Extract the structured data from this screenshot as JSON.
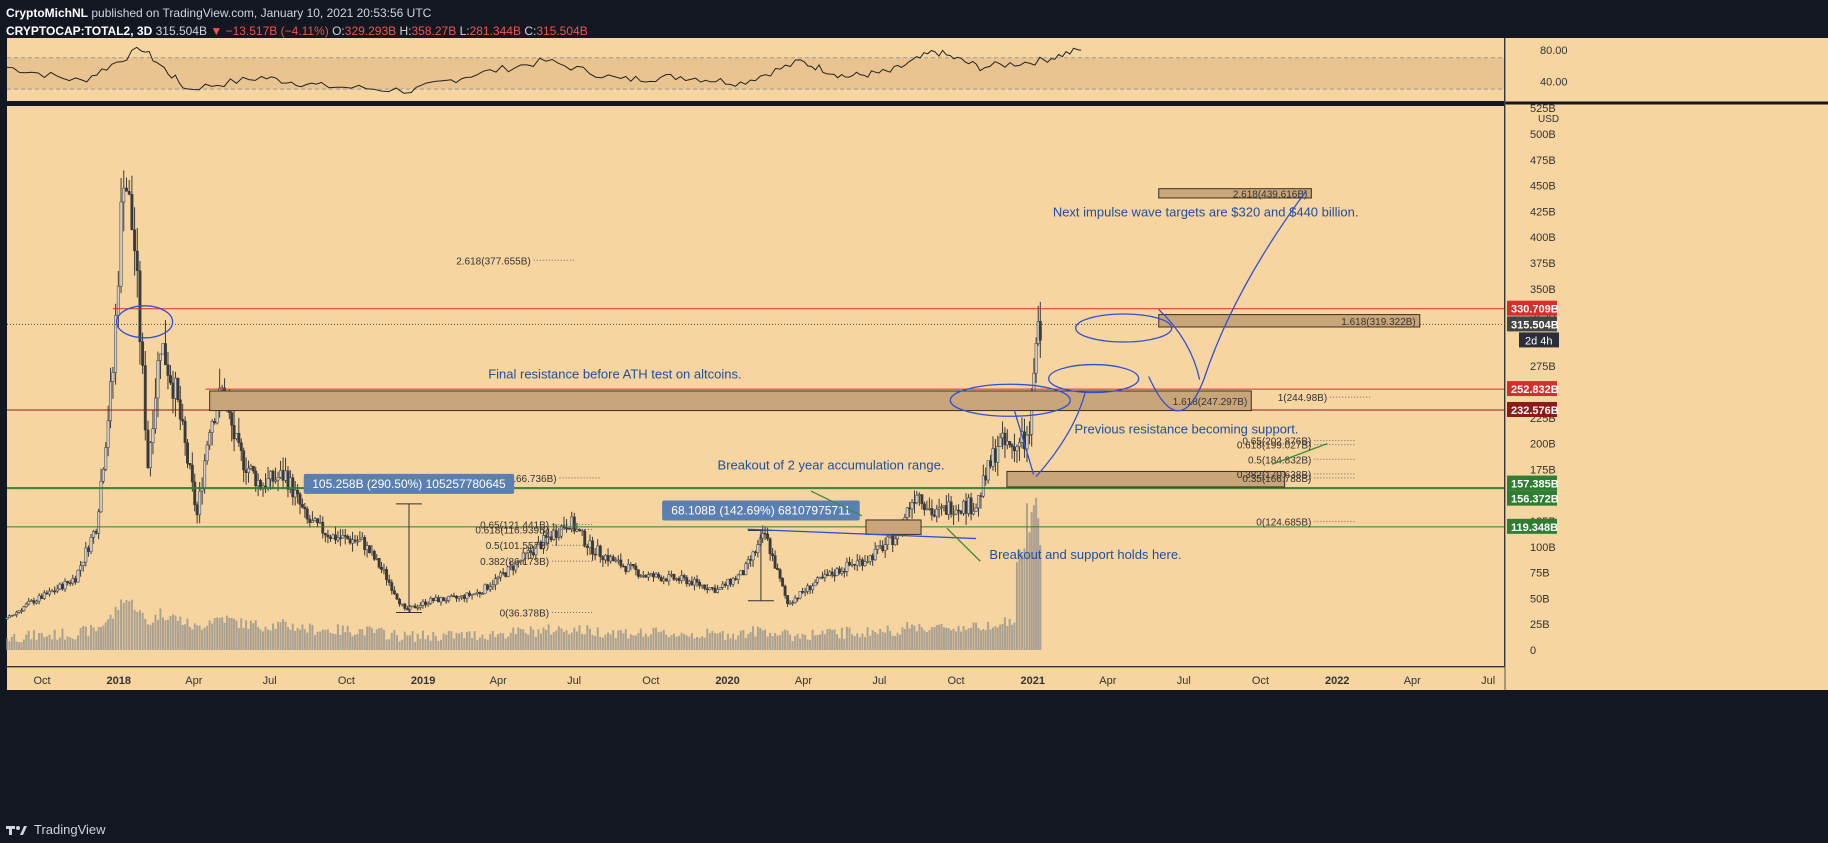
{
  "header": {
    "author": "CryptoMichNL",
    "published_text": "published on TradingView.com, January 10, 2021 20:53:56 UTC",
    "symbol": "CRYPTOCAP:TOTAL2, 3D",
    "last": "315.504B",
    "change": "−13.517B (−4.11%)",
    "o_label": "O:",
    "o_val": "329.293B",
    "h_label": "H:",
    "h_val": "358.27B",
    "l_label": "L:",
    "l_val": "281.344B",
    "c_label": "C:",
    "c_val": "315.504B"
  },
  "footer": {
    "brand": "TradingView"
  },
  "colors": {
    "background": "#131722",
    "pane": "#f7d5a0",
    "rsi_band": "#e9c490",
    "candle": "#3a3a3a",
    "volume": "#8a8a8a",
    "annotation_blue": "#2f4fd6",
    "annotation_text": "#1f4fa0",
    "support_green": "#2e7d32",
    "resistance_red": "#d32f2f",
    "zone_fill": "#c9a57a",
    "zone_stroke": "#3a2f24"
  },
  "chart_data": {
    "type": "candlestick",
    "symbol": "CRYPTOCAP:TOTAL2",
    "interval": "3D",
    "x_range": [
      "2017-08-20",
      "2022-07-20"
    ],
    "y_unit": "USD",
    "y_range": [
      0,
      525
    ],
    "y_ticks": [
      "0",
      "25B",
      "50B",
      "75B",
      "100B",
      "125B",
      "150B",
      "175B",
      "200B",
      "225B",
      "250B",
      "275B",
      "300B",
      "325B",
      "350B",
      "375B",
      "400B",
      "425B",
      "450B",
      "475B",
      "500B"
    ],
    "y_ticks_top_label": "525B",
    "x_ticks": [
      {
        "date": "2017-10-01",
        "label": "Oct"
      },
      {
        "date": "2018-01-01",
        "label": "2018"
      },
      {
        "date": "2018-04-01",
        "label": "Apr"
      },
      {
        "date": "2018-07-01",
        "label": "Jul"
      },
      {
        "date": "2018-10-01",
        "label": "Oct"
      },
      {
        "date": "2019-01-01",
        "label": "2019"
      },
      {
        "date": "2019-04-01",
        "label": "Apr"
      },
      {
        "date": "2019-07-01",
        "label": "Jul"
      },
      {
        "date": "2019-10-01",
        "label": "Oct"
      },
      {
        "date": "2020-01-01",
        "label": "2020"
      },
      {
        "date": "2020-04-01",
        "label": "Apr"
      },
      {
        "date": "2020-07-01",
        "label": "Jul"
      },
      {
        "date": "2020-10-01",
        "label": "Oct"
      },
      {
        "date": "2021-01-01",
        "label": "2021"
      },
      {
        "date": "2021-04-01",
        "label": "Apr"
      },
      {
        "date": "2021-07-01",
        "label": "Jul"
      },
      {
        "date": "2021-10-01",
        "label": "Oct"
      },
      {
        "date": "2022-01-01",
        "label": "2022"
      },
      {
        "date": "2022-04-01",
        "label": "Apr"
      },
      {
        "date": "2022-07-01",
        "label": "Jul"
      }
    ],
    "price_path": [
      [
        "2017-08-20",
        30
      ],
      [
        "2017-09-15",
        45
      ],
      [
        "2017-10-10",
        55
      ],
      [
        "2017-11-10",
        70
      ],
      [
        "2017-12-05",
        120
      ],
      [
        "2017-12-25",
        270
      ],
      [
        "2018-01-07",
        470
      ],
      [
        "2018-01-20",
        390
      ],
      [
        "2018-02-05",
        180
      ],
      [
        "2018-02-20",
        300
      ],
      [
        "2018-03-10",
        250
      ],
      [
        "2018-04-05",
        130
      ],
      [
        "2018-04-20",
        220
      ],
      [
        "2018-05-05",
        250
      ],
      [
        "2018-05-25",
        190
      ],
      [
        "2018-06-20",
        160
      ],
      [
        "2018-07-20",
        170
      ],
      [
        "2018-08-15",
        125
      ],
      [
        "2018-09-15",
        110
      ],
      [
        "2018-10-20",
        105
      ],
      [
        "2018-11-15",
        75
      ],
      [
        "2018-12-10",
        38
      ],
      [
        "2019-01-10",
        48
      ],
      [
        "2019-02-10",
        50
      ],
      [
        "2019-03-10",
        56
      ],
      [
        "2019-04-10",
        75
      ],
      [
        "2019-05-10",
        95
      ],
      [
        "2019-06-25",
        125
      ],
      [
        "2019-07-20",
        100
      ],
      [
        "2019-08-20",
        85
      ],
      [
        "2019-09-25",
        72
      ],
      [
        "2019-11-10",
        68
      ],
      [
        "2019-12-20",
        58
      ],
      [
        "2020-01-20",
        75
      ],
      [
        "2020-02-15",
        112
      ],
      [
        "2020-03-13",
        45
      ],
      [
        "2020-04-15",
        65
      ],
      [
        "2020-05-20",
        80
      ],
      [
        "2020-06-20",
        90
      ],
      [
        "2020-07-20",
        110
      ],
      [
        "2020-08-15",
        155
      ],
      [
        "2020-09-05",
        130
      ],
      [
        "2020-09-25",
        140
      ],
      [
        "2020-10-25",
        140
      ],
      [
        "2020-11-20",
        200
      ],
      [
        "2020-12-10",
        195
      ],
      [
        "2020-12-28",
        205
      ],
      [
        "2021-01-05",
        300
      ],
      [
        "2021-01-10",
        315.504
      ]
    ],
    "rsi": {
      "ticks": [
        "80.00",
        "40.00"
      ],
      "band": [
        30,
        70
      ],
      "y_range": [
        20,
        90
      ],
      "path": [
        [
          0.0,
          58
        ],
        [
          0.05,
          40
        ],
        [
          0.09,
          82
        ],
        [
          0.12,
          30
        ],
        [
          0.17,
          45
        ],
        [
          0.21,
          34
        ],
        [
          0.27,
          28
        ],
        [
          0.31,
          48
        ],
        [
          0.36,
          66
        ],
        [
          0.41,
          42
        ],
        [
          0.45,
          46
        ],
        [
          0.49,
          38
        ],
        [
          0.53,
          65
        ],
        [
          0.56,
          46
        ],
        [
          0.59,
          52
        ],
        [
          0.62,
          78
        ],
        [
          0.65,
          58
        ],
        [
          0.69,
          66
        ],
        [
          0.72,
          82
        ]
      ]
    },
    "horizontal_lines": [
      {
        "value": 330.709,
        "label": "330.709B",
        "color": "#d32f2f",
        "start": "2017-12-25"
      },
      {
        "value": 315.504,
        "label": "315.504B",
        "color": "#444444",
        "dotted": true,
        "start": "2017-08-20"
      },
      {
        "value": 252.832,
        "label": "252.832B",
        "color": "#d32f2f",
        "start": "2018-04-15"
      },
      {
        "value": 232.576,
        "label": "232.576B",
        "color": "#8b1a1a",
        "start": "2017-08-20"
      },
      {
        "value": 157.385,
        "label": "157.385B",
        "color": "#2e7d32",
        "start": "2017-08-20"
      },
      {
        "value": 156.372,
        "label": "156.372B",
        "color": "#2e7d32",
        "start": "2017-08-20"
      },
      {
        "value": 119.348,
        "label": "119.348B",
        "color": "#2e7d32",
        "start": "2017-08-20"
      }
    ],
    "countdown_label": "2d 4h",
    "zones": [
      {
        "from": "2021-06-01",
        "to": "2021-12-01",
        "low": 438,
        "high": 447,
        "label": "2.618(439.616B)"
      },
      {
        "from": "2021-06-01",
        "to": "2022-04-10",
        "low": 313,
        "high": 325,
        "label": "1.618(319.322B)"
      },
      {
        "from": "2018-04-20",
        "to": "2021-09-20",
        "low": 232,
        "high": 251,
        "label": "1.618(247.297B)"
      },
      {
        "from": "2020-12-01",
        "to": "2021-10-30",
        "low": 158,
        "high": 173
      },
      {
        "from": "2020-06-15",
        "to": "2020-08-20",
        "low": 112,
        "high": 126
      }
    ],
    "fib_labels": [
      {
        "date": "2019-05-10",
        "value": 377.655,
        "text": "2.618(377.655B)"
      },
      {
        "date": "2019-06-10",
        "value": 166.736,
        "text": "1(166.736B)"
      },
      {
        "date": "2019-06-01",
        "value": 121.441,
        "text": "0.65(121.441B)"
      },
      {
        "date": "2019-06-01",
        "value": 116.939,
        "text": "0.618(116.939B)"
      },
      {
        "date": "2019-06-01",
        "value": 101.557,
        "text": "0.5(101.557B)"
      },
      {
        "date": "2019-06-01",
        "value": 86.173,
        "text": "0.382(86.173B)"
      },
      {
        "date": "2019-06-01",
        "value": 36.378,
        "text": "0(36.378B)"
      },
      {
        "date": "2021-12-20",
        "value": 244.98,
        "text": "1(244.98B)"
      },
      {
        "date": "2021-12-01",
        "value": 202.876,
        "text": "0.65(202.876B)"
      },
      {
        "date": "2021-12-01",
        "value": 199.027,
        "text": "0.618(199.027B)"
      },
      {
        "date": "2021-12-01",
        "value": 184.832,
        "text": "0.5(184.832B)"
      },
      {
        "date": "2021-12-01",
        "value": 170.638,
        "text": "0.382(170.638B)"
      },
      {
        "date": "2021-12-01",
        "value": 166.788,
        "text": "0.35(166.788B)"
      },
      {
        "date": "2021-12-01",
        "value": 124.685,
        "text": "0(124.685B)"
      }
    ],
    "measurements": [
      {
        "text": "105.258B (290.50%) 105257780645",
        "date": "2018-12-15",
        "from": 36.378,
        "to": 141.6
      },
      {
        "text": "68.108B (142.69%) 68107975711",
        "date": "2020-02-10",
        "from": 47.7,
        "to": 115.8
      }
    ],
    "annotations": [
      {
        "text": "Next impulse wave targets are $320 and $440 billion.",
        "date": "2021-01-25",
        "value": 420
      },
      {
        "text": "Final resistance before ATH test on altcoins.",
        "date": "2019-03-20",
        "value": 263
      },
      {
        "text": "Previous resistance becoming support.",
        "date": "2021-02-20",
        "value": 210
      },
      {
        "text": "Breakout of 2 year accumulation range.",
        "date": "2019-12-20",
        "value": 175
      },
      {
        "text": "Breakout and support holds here.",
        "date": "2020-11-10",
        "value": 88
      }
    ]
  }
}
